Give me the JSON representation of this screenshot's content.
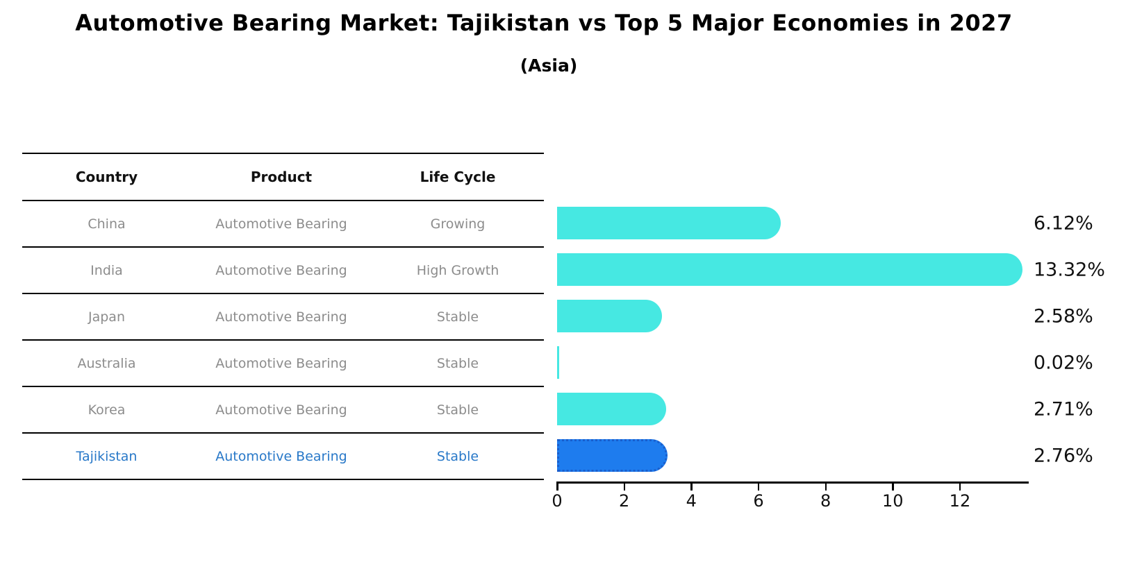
{
  "title": "Automotive Bearing Market: Tajikistan vs Top 5 Major Economies in 2027",
  "subtitle": "(Asia)",
  "table": {
    "headers": [
      "Country",
      "Product",
      "Life Cycle"
    ],
    "rows": [
      {
        "country": "China",
        "product": "Automotive Bearing",
        "life_cycle": "Growing",
        "highlight": false
      },
      {
        "country": "India",
        "product": "Automotive Bearing",
        "life_cycle": "High Growth",
        "highlight": false
      },
      {
        "country": "Japan",
        "product": "Automotive Bearing",
        "life_cycle": "Stable",
        "highlight": false
      },
      {
        "country": "Australia",
        "product": "Automotive Bearing",
        "life_cycle": "Stable",
        "highlight": false
      },
      {
        "country": "Korea",
        "product": "Automotive Bearing",
        "life_cycle": "Stable",
        "highlight": false
      },
      {
        "country": "Tajikistan",
        "product": "Automotive Bearing",
        "life_cycle": "Stable",
        "highlight": true
      }
    ]
  },
  "chart_data": {
    "type": "bar",
    "orientation": "horizontal",
    "title": "Automotive Bearing Market: Tajikistan vs Top 5 Major Economies in 2027",
    "subtitle": "(Asia)",
    "categories": [
      "China",
      "India",
      "Japan",
      "Australia",
      "Korea",
      "Tajikistan"
    ],
    "values": [
      6.12,
      13.32,
      2.58,
      0.02,
      2.71,
      2.76
    ],
    "value_labels": [
      "6.12%",
      "13.32%",
      "2.58%",
      "0.02%",
      "2.71%",
      "2.76%"
    ],
    "xlabel": "",
    "ylabel": "",
    "xlim": [
      0,
      14
    ],
    "xticks": [
      0,
      2,
      4,
      6,
      8,
      10,
      12
    ],
    "grid": false,
    "legend_position": "none",
    "highlight_index": 5
  },
  "colors": {
    "bar": "#46E8E2",
    "highlight_bar": "#1E7CEE",
    "highlight_border": "#1A5ECC",
    "row_text": "#8c8c8c",
    "highlight_text": "#2878C8",
    "value_text": "#111111"
  }
}
